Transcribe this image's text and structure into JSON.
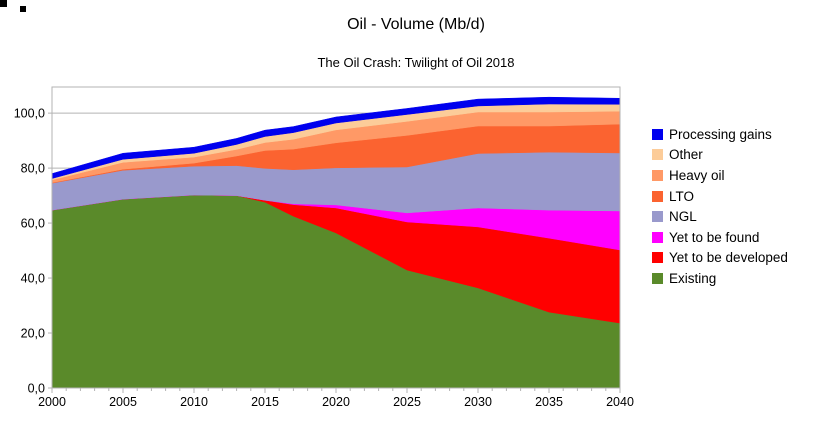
{
  "chart_data": {
    "type": "area",
    "stacked": true,
    "title": "Oil - Volume (Mb/d)",
    "subtitle": "The Oil Crash: Twilight of Oil 2018",
    "xlabel": "",
    "ylabel": "",
    "xlim": [
      2000,
      2040
    ],
    "ylim": [
      0,
      109.5
    ],
    "grid": "horizontal",
    "legend_position": "right",
    "x": [
      2000,
      2005,
      2010,
      2013,
      2015,
      2017,
      2020,
      2025,
      2030,
      2035,
      2040
    ],
    "x_tick_labels": [
      "2000",
      "2005",
      "2010",
      "2015",
      "2020",
      "2025",
      "2030",
      "2035",
      "2040"
    ],
    "x_minor_tick_step_years": 1,
    "y_ticks": [
      0,
      20,
      40,
      60,
      80,
      100
    ],
    "y_tick_labels": [
      "0,0",
      "20,0",
      "40,0",
      "60,0",
      "80,0",
      "100,0"
    ],
    "series_bottom_to_top": [
      {
        "name": "Existing",
        "color": "#5A8A2A",
        "values": [
          64.7,
          68.7,
          70.2,
          70.0,
          67.6,
          62.5,
          56.4,
          42.9,
          36.4,
          27.6,
          23.6
        ]
      },
      {
        "name": "Yet to be developed",
        "color": "#FF0000",
        "values": [
          0,
          0,
          0,
          0,
          0.7,
          4.2,
          9.1,
          17.5,
          22.2,
          26.9,
          26.6
        ]
      },
      {
        "name": "Yet to be found",
        "color": "#FF00FF",
        "values": [
          0,
          0,
          0,
          0,
          0,
          0.3,
          1.1,
          3.3,
          6.9,
          10.2,
          14.2
        ]
      },
      {
        "name": "NGL",
        "color": "#9999CC",
        "values": [
          9.8,
          10.5,
          10.5,
          10.9,
          11.6,
          12.4,
          13.5,
          16.7,
          19.8,
          21.1,
          21.1
        ]
      },
      {
        "name": "LTO",
        "color": "#FB6330",
        "values": [
          0.2,
          0.4,
          1.1,
          3.5,
          6.5,
          7.5,
          9.1,
          11.5,
          10.0,
          9.5,
          10.5
        ]
      },
      {
        "name": "Heavy oil",
        "color": "#FF9966",
        "values": [
          1.0,
          2.5,
          2.2,
          2.4,
          2.9,
          3.6,
          4.7,
          5.1,
          5.1,
          5.1,
          4.7
        ]
      },
      {
        "name": "Other",
        "color": "#FCCC99",
        "values": [
          0.5,
          1.1,
          1.4,
          1.8,
          2.2,
          2.4,
          2.5,
          2.5,
          2.2,
          2.9,
          2.5
        ]
      },
      {
        "name": "Processing gains",
        "color": "#0000EE",
        "values": [
          1.8,
          2.2,
          2.2,
          2.2,
          2.3,
          2.2,
          2.2,
          2.2,
          2.5,
          2.5,
          2.2
        ]
      }
    ],
    "legend_top_to_bottom": [
      "Processing gains",
      "Other",
      "Heavy oil",
      "LTO",
      "NGL",
      "Yet to be found",
      "Yet to be developed",
      "Existing"
    ]
  },
  "colors": {
    "frame": "#b3b3b3",
    "gridline": "#b3b3b3",
    "tick": "#b3b3b3",
    "text": "#000000",
    "background": "#ffffff"
  },
  "icons": {
    "selection_handle": "black-square",
    "legend_swatch": "color-square"
  }
}
